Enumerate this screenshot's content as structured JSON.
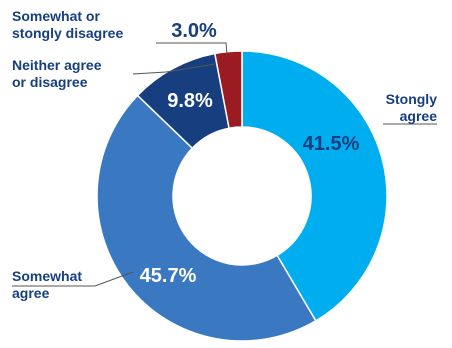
{
  "chart_data": {
    "type": "pie",
    "variant": "donut",
    "categories": [
      "Stongly agree",
      "Somewhat agree",
      "Neither agree or disagree",
      "Somewhat or stongly disagree"
    ],
    "values": [
      41.5,
      45.7,
      9.8,
      3.0
    ],
    "value_labels": [
      "41.5%",
      "45.7%",
      "9.8%",
      "3.0%"
    ],
    "category_label_lines": [
      [
        "Stongly",
        "agree"
      ],
      [
        "Somewhat",
        "agree"
      ],
      [
        "Neither agree",
        "or disagree"
      ],
      [
        "Somewhat or",
        "stongly disagree"
      ]
    ],
    "colors": [
      "#00aeef",
      "#3a78c2",
      "#173f80",
      "#9b1b22"
    ],
    "label_text_color": "#173f80",
    "value_text_colors": [
      "#173f80",
      "#ffffff",
      "#ffffff",
      "#173f80"
    ],
    "start_angle_deg": 0,
    "direction": "clockwise"
  }
}
